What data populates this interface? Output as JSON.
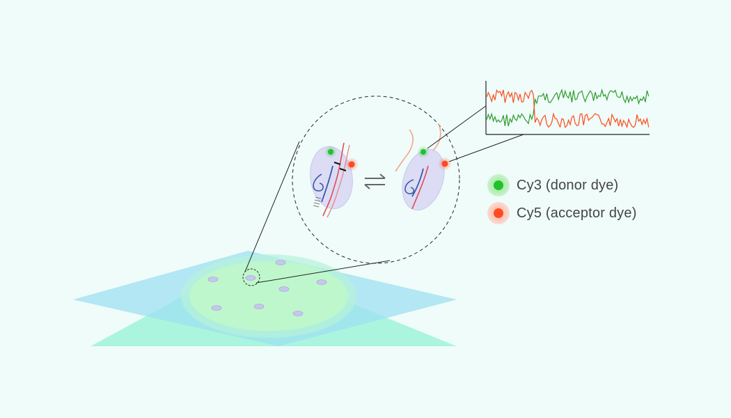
{
  "colors": {
    "background": "#effcfa",
    "cy3": "#1fc22a",
    "cy5": "#ff4a22",
    "trace_green": "#2f9a2a",
    "trace_red": "#ff4a1a"
  },
  "legend": {
    "items": [
      {
        "label": "Cy3 (donor dye)",
        "color": "#1fc22a",
        "halo": "#b4ecb2"
      },
      {
        "label": "Cy5 (acceptor dye)",
        "color": "#ff4a22",
        "halo": "#ffc7b8"
      }
    ]
  },
  "icons": {
    "equilibrium": "equilibrium-arrows-icon"
  }
}
